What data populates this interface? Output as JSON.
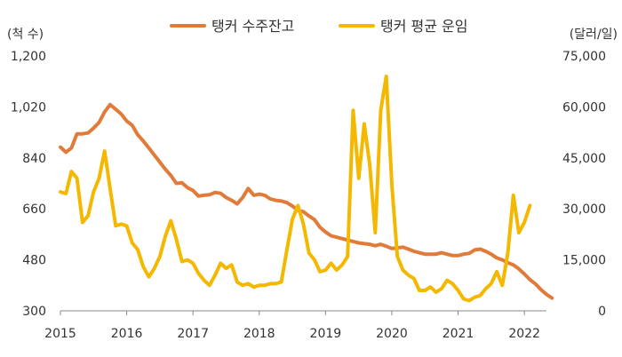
{
  "chart_data": {
    "type": "line",
    "left_axis_unit": "(척 수)",
    "right_axis_unit": "(달러/일)",
    "ylim_left": [
      300,
      1200
    ],
    "ylim_right": [
      0,
      75000
    ],
    "left_ticks": [
      "1,200",
      "1,020",
      "840",
      "660",
      "480",
      "300"
    ],
    "right_ticks": [
      "75,000",
      "60,000",
      "45,000",
      "30,000",
      "15,000",
      "0"
    ],
    "x_ticks": [
      "2015",
      "2016",
      "2017",
      "2018",
      "2019",
      "2020",
      "2021",
      "2022"
    ],
    "legend_position": "top-center",
    "x_start": "2015-01",
    "grid": false,
    "series": [
      {
        "name": "탱커 수주잔고",
        "axis": "left",
        "color": "#E07B39",
        "values": [
          878,
          860,
          875,
          925,
          925,
          928,
          945,
          965,
          1002,
          1028,
          1012,
          995,
          970,
          955,
          922,
          900,
          875,
          850,
          825,
          800,
          778,
          750,
          752,
          735,
          725,
          705,
          708,
          710,
          718,
          715,
          700,
          690,
          678,
          700,
          732,
          708,
          712,
          708,
          695,
          690,
          688,
          682,
          670,
          655,
          650,
          635,
          622,
          595,
          578,
          565,
          560,
          555,
          550,
          545,
          540,
          537,
          535,
          530,
          535,
          528,
          520,
          522,
          525,
          518,
          510,
          505,
          500,
          500,
          500,
          505,
          500,
          495,
          495,
          500,
          503,
          515,
          518,
          510,
          500,
          487,
          480,
          470,
          462,
          448,
          430,
          410,
          395,
          375,
          358,
          345
        ]
      },
      {
        "name": "탱커 평균 운임",
        "axis": "right",
        "color": "#F5B800",
        "values": [
          35000,
          34500,
          41000,
          39000,
          26000,
          28000,
          35000,
          39000,
          47000,
          36000,
          25000,
          25500,
          25000,
          20000,
          18000,
          13000,
          10000,
          12500,
          16000,
          22000,
          26500,
          21000,
          14500,
          15000,
          14000,
          11000,
          9000,
          7500,
          10500,
          14000,
          12500,
          13500,
          8500,
          7500,
          8000,
          7000,
          7500,
          7500,
          8000,
          8000,
          8500,
          18000,
          27000,
          31000,
          25500,
          17000,
          15000,
          11500,
          12000,
          14000,
          12000,
          13500,
          16000,
          59000,
          39000,
          55000,
          43000,
          23000,
          59000,
          69000,
          37000,
          16000,
          12000,
          10500,
          9500,
          6000,
          6000,
          7000,
          5500,
          6500,
          9000,
          8000,
          6000,
          3500,
          3000,
          4000,
          4500,
          6500,
          8000,
          11500,
          7500,
          17000,
          34000,
          23000,
          26000,
          31000
        ]
      }
    ]
  }
}
